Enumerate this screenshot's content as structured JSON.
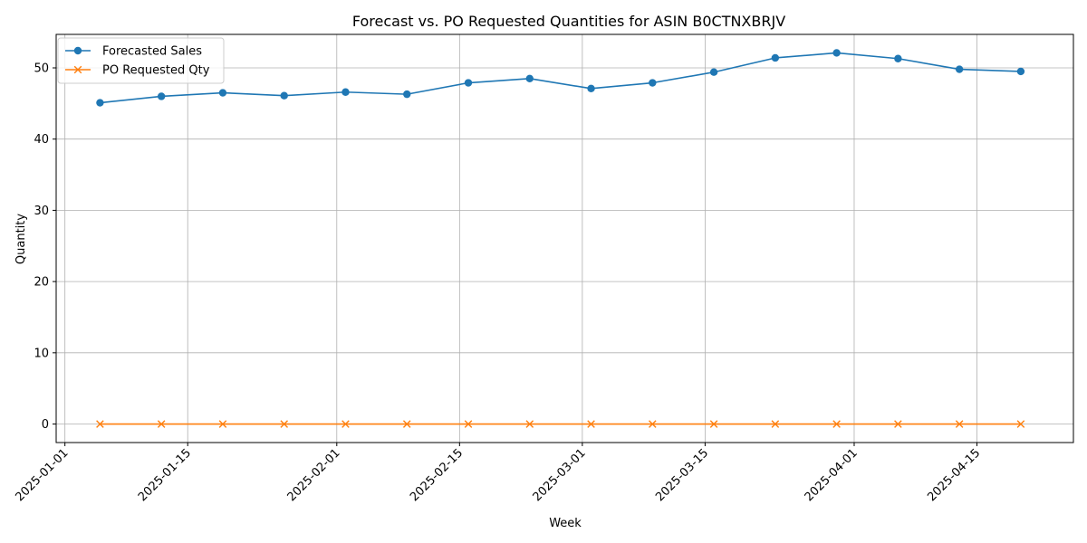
{
  "chart_data": {
    "type": "line",
    "title": "Forecast vs. PO Requested Quantities for ASIN B0CTNXBRJV",
    "xlabel": "Week",
    "ylabel": "Quantity",
    "x": [
      "2025-01-05",
      "2025-01-12",
      "2025-01-19",
      "2025-01-26",
      "2025-02-02",
      "2025-02-09",
      "2025-02-16",
      "2025-02-23",
      "2025-03-02",
      "2025-03-09",
      "2025-03-16",
      "2025-03-23",
      "2025-03-30",
      "2025-04-06",
      "2025-04-13",
      "2025-04-20"
    ],
    "x_ticks": [
      "2025-01-01",
      "2025-01-15",
      "2025-02-01",
      "2025-02-15",
      "2025-03-01",
      "2025-03-15",
      "2025-04-01",
      "2025-04-15"
    ],
    "xlim": [
      "2024-12-31",
      "2025-04-26"
    ],
    "ylim": [
      -2.6,
      54.7
    ],
    "y_ticks": [
      0,
      10,
      20,
      30,
      40,
      50
    ],
    "grid": true,
    "legend_position": "top-left",
    "series": [
      {
        "name": "Forecasted Sales",
        "color": "#1f77b4",
        "marker": "circle",
        "values": [
          45.1,
          46.0,
          46.5,
          46.1,
          46.6,
          46.3,
          47.9,
          48.5,
          47.1,
          47.9,
          49.4,
          51.4,
          52.1,
          51.3,
          49.8,
          49.5
        ]
      },
      {
        "name": "PO Requested Qty",
        "color": "#ff7f0e",
        "marker": "x",
        "values": [
          0,
          0,
          0,
          0,
          0,
          0,
          0,
          0,
          0,
          0,
          0,
          0,
          0,
          0,
          0,
          0
        ]
      }
    ]
  }
}
